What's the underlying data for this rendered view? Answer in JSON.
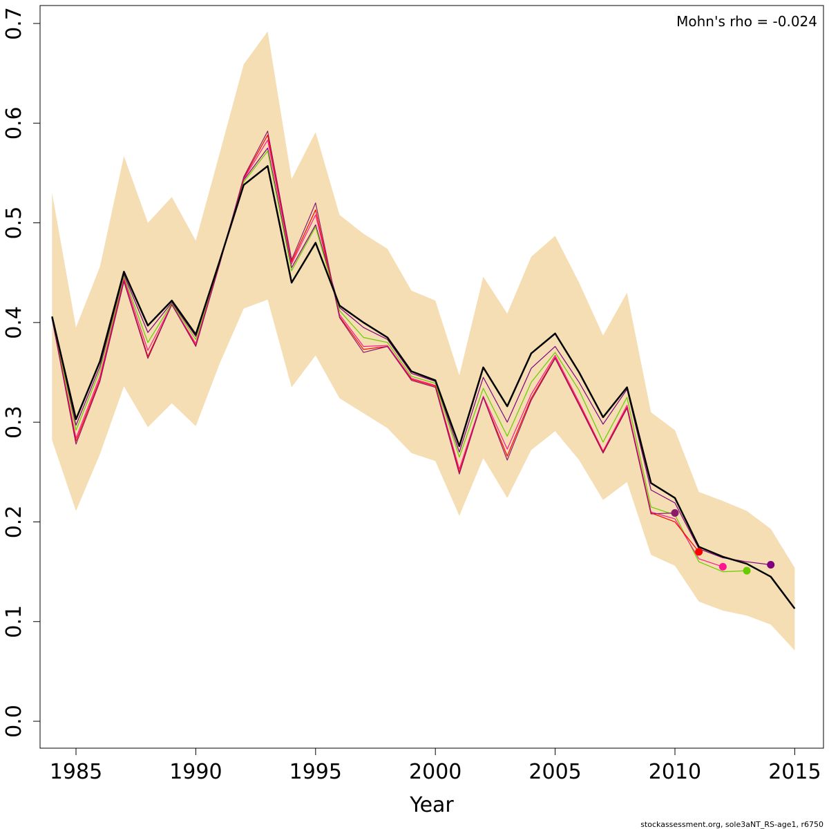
{
  "chart_data": {
    "type": "line",
    "title": "",
    "xlabel": "Year",
    "ylabel": "",
    "xlim": [
      1983.5,
      2016.2
    ],
    "ylim": [
      -0.027,
      0.718
    ],
    "x_ticks": [
      1985,
      1990,
      1995,
      2000,
      2005,
      2010,
      2015
    ],
    "x_tick_labels": [
      "1985",
      "1990",
      "1995",
      "2000",
      "2005",
      "2010",
      "2015"
    ],
    "y_ticks": [
      0.0,
      0.1,
      0.2,
      0.3,
      0.4,
      0.5,
      0.6,
      0.7
    ],
    "y_tick_labels": [
      "0.0",
      "0.1",
      "0.2",
      "0.3",
      "0.4",
      "0.5",
      "0.6",
      "0.7"
    ],
    "grid": false,
    "annotation": "Mohn's rho = -0.024",
    "footer": "stockassessment.org, sole3aNT_RS-age1, r6750",
    "confidence_band": {
      "color": "#f5deb3",
      "x": [
        1984,
        1985,
        1986,
        1987,
        1988,
        1989,
        1990,
        1991,
        1992,
        1993,
        1994,
        1995,
        1996,
        1997,
        1998,
        1999,
        2000,
        2001,
        2002,
        2003,
        2004,
        2005,
        2006,
        2007,
        2008,
        2009,
        2010,
        2011,
        2012,
        2013,
        2014,
        2015
      ],
      "upper": [
        0.53,
        0.395,
        0.456,
        0.567,
        0.5,
        0.526,
        0.482,
        0.57,
        0.659,
        0.692,
        0.544,
        0.591,
        0.508,
        0.489,
        0.474,
        0.432,
        0.422,
        0.347,
        0.446,
        0.409,
        0.466,
        0.487,
        0.44,
        0.387,
        0.43,
        0.31,
        0.292,
        0.23,
        0.221,
        0.211,
        0.193,
        0.154
      ],
      "lower": [
        0.282,
        0.211,
        0.268,
        0.336,
        0.295,
        0.319,
        0.296,
        0.359,
        0.414,
        0.423,
        0.335,
        0.367,
        0.324,
        0.309,
        0.294,
        0.269,
        0.261,
        0.206,
        0.264,
        0.224,
        0.272,
        0.291,
        0.262,
        0.222,
        0.24,
        0.167,
        0.156,
        0.12,
        0.111,
        0.106,
        0.097,
        0.071
      ]
    },
    "series": [
      {
        "color": "#000000",
        "width": 2.5,
        "x": [
          1984,
          1985,
          1986,
          1987,
          1988,
          1989,
          1990,
          1991,
          1992,
          1993,
          1994,
          1995,
          1996,
          1997,
          1998,
          1999,
          2000,
          2001,
          2002,
          2003,
          2004,
          2005,
          2006,
          2007,
          2008,
          2009,
          2010,
          2011,
          2012,
          2013,
          2014,
          2015
        ],
        "values": [
          0.406,
          0.303,
          0.361,
          0.451,
          0.397,
          0.422,
          0.388,
          0.462,
          0.538,
          0.557,
          0.44,
          0.48,
          0.417,
          0.4,
          0.385,
          0.351,
          0.342,
          0.276,
          0.355,
          0.316,
          0.369,
          0.389,
          0.35,
          0.305,
          0.335,
          0.239,
          0.224,
          0.175,
          0.165,
          0.158,
          0.145,
          0.113
        ]
      },
      {
        "color": "#800080",
        "width": 1.2,
        "end_point": true,
        "x": [
          1984,
          1985,
          1986,
          1987,
          1988,
          1989,
          1990,
          1991,
          1992,
          1993,
          1994,
          1995,
          1996,
          1997,
          1998,
          1999,
          2000,
          2001,
          2002,
          2003,
          2004,
          2005,
          2006,
          2007,
          2008,
          2009,
          2010,
          2011,
          2012,
          2013,
          2014
        ],
        "values": [
          0.405,
          0.297,
          0.356,
          0.448,
          0.39,
          0.42,
          0.386,
          0.462,
          0.543,
          0.575,
          0.455,
          0.498,
          0.415,
          0.395,
          0.383,
          0.349,
          0.341,
          0.27,
          0.345,
          0.3,
          0.354,
          0.376,
          0.34,
          0.298,
          0.333,
          0.232,
          0.219,
          0.173,
          0.164,
          0.16,
          0.157
        ]
      },
      {
        "color": "#66cc00",
        "width": 1.2,
        "end_point": true,
        "x": [
          1984,
          1985,
          1986,
          1987,
          1988,
          1989,
          1990,
          1991,
          1992,
          1993,
          1994,
          1995,
          1996,
          1997,
          1998,
          1999,
          2000,
          2001,
          2002,
          2003,
          2004,
          2005,
          2006,
          2007,
          2008,
          2009,
          2010,
          2011,
          2012,
          2013
        ],
        "values": [
          0.405,
          0.292,
          0.352,
          0.446,
          0.38,
          0.419,
          0.383,
          0.461,
          0.541,
          0.572,
          0.452,
          0.496,
          0.412,
          0.385,
          0.38,
          0.346,
          0.339,
          0.265,
          0.334,
          0.286,
          0.34,
          0.37,
          0.332,
          0.28,
          0.325,
          0.215,
          0.207,
          0.16,
          0.15,
          0.151
        ]
      },
      {
        "color": "#ff1493",
        "width": 1.2,
        "end_point": true,
        "x": [
          1984,
          1985,
          1986,
          1987,
          1988,
          1989,
          1990,
          1991,
          1992,
          1993,
          1994,
          1995,
          1996,
          1997,
          1998,
          1999,
          2000,
          2001,
          2002,
          2003,
          2004,
          2005,
          2006,
          2007,
          2008,
          2009,
          2010,
          2011,
          2012
        ],
        "values": [
          0.404,
          0.284,
          0.346,
          0.444,
          0.372,
          0.418,
          0.379,
          0.46,
          0.544,
          0.583,
          0.459,
          0.508,
          0.408,
          0.376,
          0.377,
          0.344,
          0.337,
          0.253,
          0.326,
          0.273,
          0.328,
          0.367,
          0.32,
          0.271,
          0.317,
          0.21,
          0.203,
          0.163,
          0.155
        ]
      },
      {
        "color": "#ff0000",
        "width": 1.2,
        "end_point": true,
        "x": [
          1984,
          1985,
          1986,
          1987,
          1988,
          1989,
          1990,
          1991,
          1992,
          1993,
          1994,
          1995,
          1996,
          1997,
          1998,
          1999,
          2000,
          2001,
          2002,
          2003,
          2004,
          2005,
          2006,
          2007,
          2008,
          2009,
          2010,
          2011
        ],
        "values": [
          0.404,
          0.281,
          0.343,
          0.442,
          0.366,
          0.418,
          0.377,
          0.459,
          0.545,
          0.588,
          0.461,
          0.513,
          0.406,
          0.373,
          0.376,
          0.343,
          0.336,
          0.25,
          0.325,
          0.266,
          0.324,
          0.365,
          0.318,
          0.27,
          0.315,
          0.209,
          0.2,
          0.17
        ]
      },
      {
        "color": "#8b1a6b",
        "width": 1.2,
        "end_point": true,
        "x": [
          1984,
          1985,
          1986,
          1987,
          1988,
          1989,
          1990,
          1991,
          1992,
          1993,
          1994,
          1995,
          1996,
          1997,
          1998,
          1999,
          2000,
          2001,
          2002,
          2003,
          2004,
          2005,
          2006,
          2007,
          2008,
          2009,
          2010
        ],
        "values": [
          0.404,
          0.278,
          0.341,
          0.441,
          0.364,
          0.418,
          0.376,
          0.459,
          0.546,
          0.592,
          0.463,
          0.52,
          0.405,
          0.37,
          0.376,
          0.342,
          0.335,
          0.248,
          0.325,
          0.262,
          0.322,
          0.364,
          0.317,
          0.269,
          0.314,
          0.208,
          0.209
        ]
      }
    ]
  }
}
